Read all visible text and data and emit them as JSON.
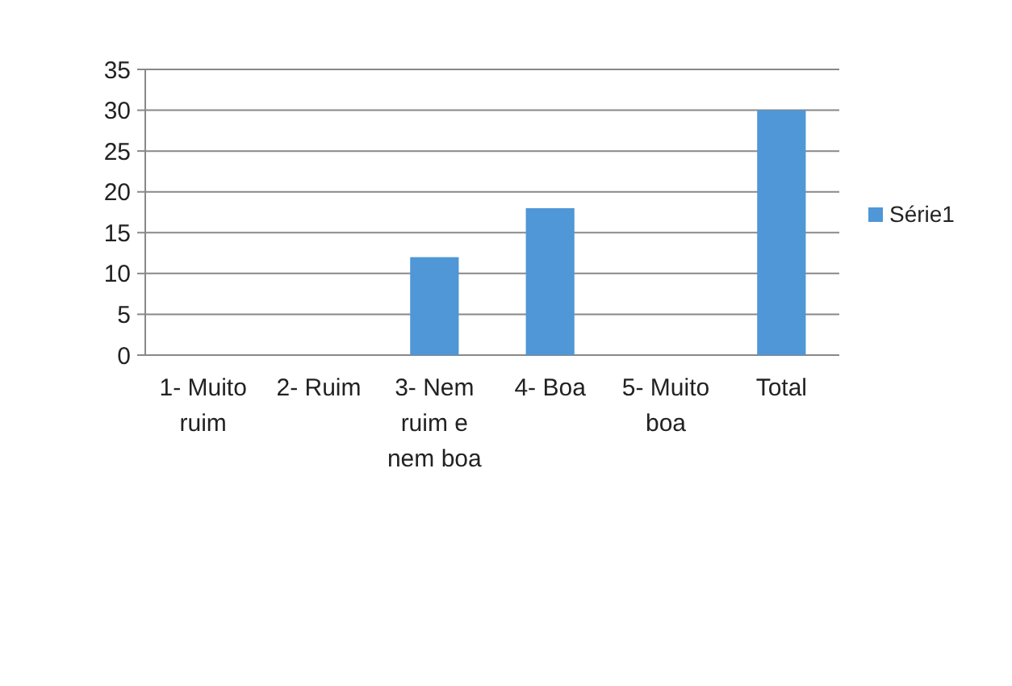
{
  "chart_data": {
    "type": "bar",
    "categories": [
      "1- Muito ruim",
      "2- Ruim",
      "3- Nem ruim e nem boa",
      "4- Boa",
      "5- Muito boa",
      "Total"
    ],
    "series": [
      {
        "name": "Série1",
        "color": "#4f97d6",
        "values": [
          0,
          0,
          12,
          18,
          0,
          30
        ]
      }
    ],
    "ylim": [
      0,
      35
    ],
    "yticks": [
      0,
      5,
      10,
      15,
      20,
      25,
      30,
      35
    ],
    "grid": "y",
    "legend": "right"
  }
}
